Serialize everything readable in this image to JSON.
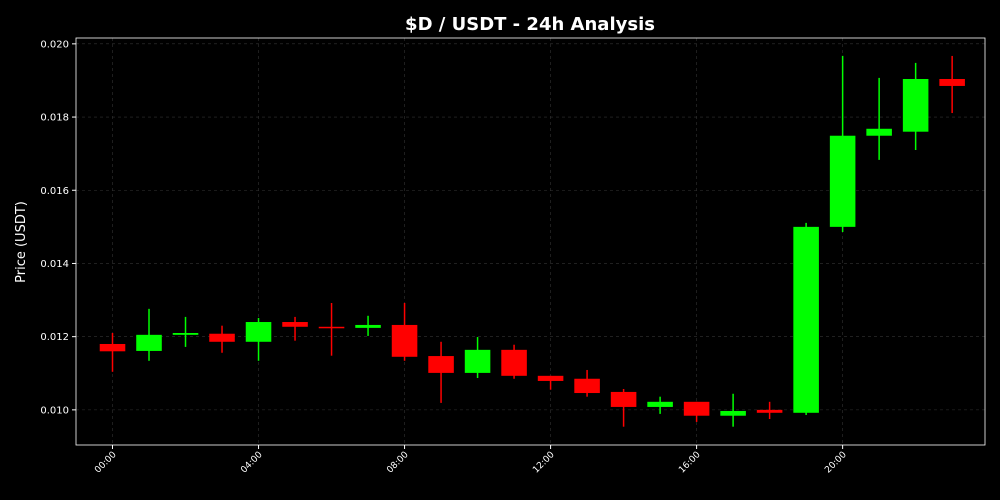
{
  "chart_data": {
    "type": "candlestick",
    "title": "$D / USDT - 24h Analysis",
    "y_label": "Price (USDT)",
    "x": [
      0,
      1,
      2,
      3,
      4,
      5,
      6,
      7,
      8,
      9,
      10,
      11,
      12,
      13,
      14,
      15,
      16,
      17,
      18,
      19,
      20,
      21,
      22,
      23
    ],
    "open": [
      0.0118,
      0.01161,
      0.01205,
      0.01208,
      0.01186,
      0.0124,
      0.01227,
      0.01224,
      0.01232,
      0.01147,
      0.01101,
      0.01164,
      0.01093,
      0.01085,
      0.01049,
      0.01008,
      0.01022,
      0.00984,
      0.01,
      0.00992,
      0.015,
      0.01749,
      0.0176,
      0.01904
    ],
    "high": [
      0.0121,
      0.01276,
      0.01254,
      0.0123,
      0.01251,
      0.01254,
      0.01292,
      0.01257,
      0.01292,
      0.01186,
      0.01199,
      0.01178,
      0.01093,
      0.01109,
      0.01057,
      0.01036,
      0.01022,
      0.01044,
      0.01022,
      0.01511,
      0.01967,
      0.01907,
      0.01948,
      0.01967
    ],
    "low": [
      0.01104,
      0.01134,
      0.01172,
      0.01156,
      0.01134,
      0.01189,
      0.01148,
      0.01202,
      0.01134,
      0.01019,
      0.01087,
      0.01085,
      0.01055,
      0.01036,
      0.00954,
      0.00989,
      0.00967,
      0.00954,
      0.00975,
      0.00986,
      0.01486,
      0.01683,
      0.0171,
      0.01811
    ],
    "close": [
      0.0116,
      0.01205,
      0.0121,
      0.01186,
      0.0124,
      0.01227,
      0.01224,
      0.01232,
      0.01145,
      0.01101,
      0.01164,
      0.01093,
      0.01079,
      0.01046,
      0.01008,
      0.01022,
      0.00984,
      0.00997,
      0.00992,
      0.015,
      0.01749,
      0.01768,
      0.01904,
      0.01885
    ],
    "up_color": "#00ff00",
    "down_color": "#ff0000",
    "xlim": [
      -1,
      23.9
    ],
    "xticks": [
      {
        "value": 0,
        "label": "00:00"
      },
      {
        "value": 4,
        "label": "04:00"
      },
      {
        "value": 8,
        "label": "08:00"
      },
      {
        "value": 12,
        "label": "12:00"
      },
      {
        "value": 16,
        "label": "16:00"
      },
      {
        "value": 20,
        "label": "20:00"
      }
    ],
    "ylim": [
      0.00904,
      0.02016
    ],
    "yticks": [
      {
        "value": 0.01,
        "label": "0.010"
      },
      {
        "value": 0.012,
        "label": "0.012"
      },
      {
        "value": 0.014,
        "label": "0.014"
      },
      {
        "value": 0.016,
        "label": "0.016"
      },
      {
        "value": 0.018,
        "label": "0.018"
      },
      {
        "value": 0.02,
        "label": "0.020"
      }
    ],
    "grid": true
  }
}
